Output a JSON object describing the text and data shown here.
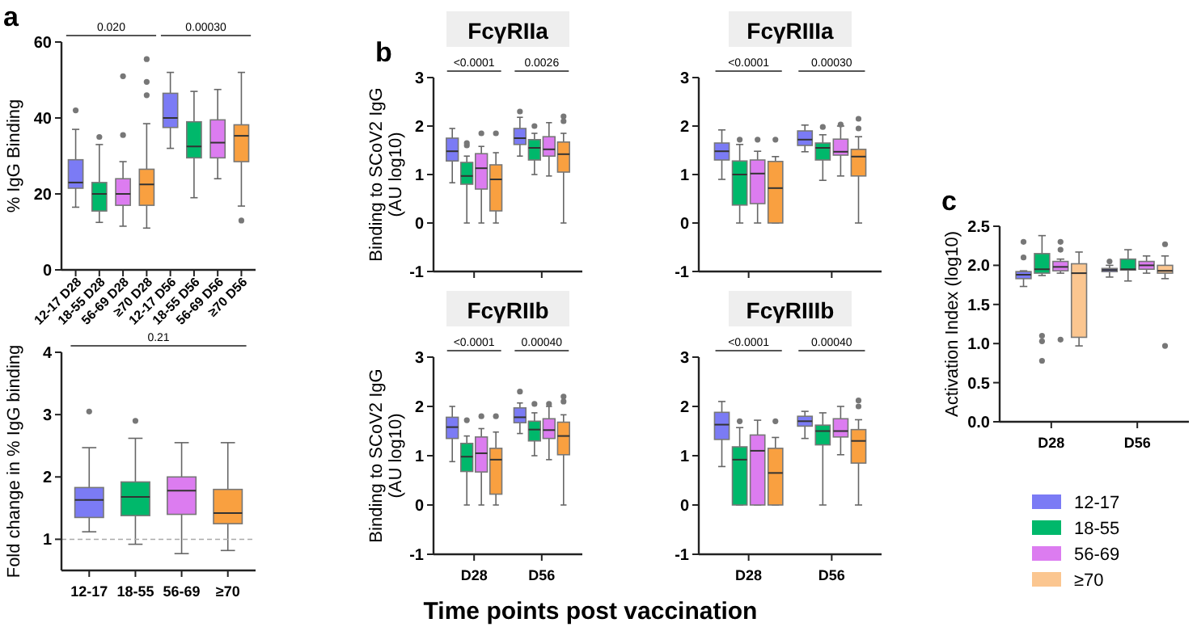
{
  "chart_data": [
    {
      "type": "box",
      "ylabel": "% IgG Binding",
      "annotations": [
        "a",
        "0.020",
        "0.00030"
      ],
      "categories": [
        "12-17 D28",
        "18-55 D28",
        "56-69 D28",
        "≥70 D28",
        "12-17 D56",
        "18-55 D56",
        "56-69 D56",
        "≥70 D56"
      ],
      "colors": [
        "#7b7bf5",
        "#00b86b",
        "#dc7cf0",
        "#f9a040",
        "#7b7bf5",
        "#00b86b",
        "#dc7cf0",
        "#f9a040"
      ],
      "ylim": [
        0,
        60
      ],
      "yticks": [
        0,
        20,
        40,
        60
      ],
      "grid": false,
      "boxes": [
        {
          "low": 16.5,
          "q1": 21.5,
          "median": 23,
          "q3": 29,
          "high": 37,
          "outliers": [
            42
          ]
        },
        {
          "low": 12.5,
          "q1": 15.5,
          "median": 20,
          "q3": 23,
          "high": 33,
          "outliers": [
            35
          ]
        },
        {
          "low": 11.5,
          "q1": 17,
          "median": 20,
          "q3": 24,
          "high": 28.5,
          "outliers": [
            35.5,
            51
          ]
        },
        {
          "low": 11,
          "q1": 17,
          "median": 22.5,
          "q3": 26.5,
          "high": 38.5,
          "outliers": [
            46,
            49.5,
            55.5
          ]
        },
        {
          "low": 32,
          "q1": 37.5,
          "median": 40,
          "q3": 46.5,
          "high": 52
        },
        {
          "low": 19,
          "q1": 29.5,
          "median": 32.5,
          "q3": 39,
          "high": 47
        },
        {
          "low": 24,
          "q1": 29.5,
          "median": 33.5,
          "q3": 39.5,
          "high": 47.5
        },
        {
          "low": 16.8,
          "q1": 28.5,
          "median": 35.3,
          "q3": 38.2,
          "high": 52,
          "outliers": [
            13
          ]
        }
      ]
    },
    {
      "type": "box",
      "ylabel": "Fold change in % IgG binding",
      "annotations": [
        "0.21"
      ],
      "categories": [
        "12-17",
        "18-55",
        "56-69",
        "≥70"
      ],
      "colors": [
        "#7b7bf5",
        "#00b86b",
        "#dc7cf0",
        "#f9a040"
      ],
      "ylim": [
        0.5,
        4
      ],
      "yticks": [
        1,
        2,
        3,
        4
      ],
      "grid": false,
      "ref_lines": [
        {
          "axis": "y",
          "value": 1,
          "color": "#aaaaaa",
          "line_style": "dashed"
        }
      ],
      "boxes": [
        {
          "low": 1.12,
          "q1": 1.35,
          "median": 1.63,
          "q3": 1.83,
          "high": 2.47,
          "outliers": [
            3.05
          ]
        },
        {
          "low": 0.92,
          "q1": 1.38,
          "median": 1.68,
          "q3": 1.92,
          "high": 2.62,
          "outliers": [
            2.9
          ]
        },
        {
          "low": 0.77,
          "q1": 1.4,
          "median": 1.78,
          "q3": 2.0,
          "high": 2.55
        },
        {
          "low": 0.82,
          "q1": 1.25,
          "median": 1.42,
          "q3": 1.8,
          "high": 2.55
        }
      ]
    },
    {
      "type": "box",
      "title": "FcγRIIa",
      "ylabel": "Binding to SCoV2 IgG\n(AU log10)",
      "annotations": [
        "b",
        "<0.0001",
        "0.0026"
      ],
      "categories": [
        null,
        null
      ],
      "ylim": [
        -1,
        3
      ],
      "yticks": [
        -1,
        0,
        1,
        2,
        3
      ],
      "tick_labels": "y",
      "grid": false,
      "series": [
        {
          "color": "#7b7bf5",
          "boxes": [
            {
              "low": 0.83,
              "q1": 1.28,
              "median": 1.48,
              "q3": 1.75,
              "high": 1.95
            },
            {
              "low": 1.38,
              "q1": 1.62,
              "median": 1.75,
              "q3": 1.95,
              "high": 2.18,
              "outliers": [
                2.3
              ]
            }
          ]
        },
        {
          "color": "#00b86b",
          "boxes": [
            {
              "low": 0,
              "q1": 0.8,
              "median": 0.97,
              "q3": 1.25,
              "high": 1.38,
              "outliers": [
                1.6,
                1.65
              ]
            },
            {
              "low": 1.0,
              "q1": 1.3,
              "median": 1.55,
              "q3": 1.72,
              "high": 1.85,
              "outliers": [
                2.0
              ]
            }
          ]
        },
        {
          "color": "#dc7cf0",
          "boxes": [
            {
              "low": 0,
              "q1": 0.7,
              "median": 1.13,
              "q3": 1.43,
              "high": 1.58,
              "outliers": [
                1.85
              ]
            },
            {
              "low": 0.97,
              "q1": 1.38,
              "median": 1.52,
              "q3": 1.78,
              "high": 2.07
            }
          ]
        },
        {
          "color": "#f9a040",
          "boxes": [
            {
              "low": 0,
              "q1": 0.25,
              "median": 0.9,
              "q3": 1.2,
              "high": 1.45,
              "outliers": [
                1.85
              ]
            },
            {
              "low": 0,
              "q1": 1.05,
              "median": 1.42,
              "q3": 1.67,
              "high": 1.85,
              "outliers": [
                2.1,
                2.2
              ]
            }
          ]
        }
      ]
    },
    {
      "type": "box",
      "title": "FcγRIIIa",
      "annotations": [
        "<0.0001",
        "0.00030"
      ],
      "categories": [
        null,
        null
      ],
      "ylim": [
        -1,
        3
      ],
      "yticks": [
        -1,
        0,
        1,
        2,
        3
      ],
      "tick_labels": "y",
      "grid": false,
      "series": [
        {
          "color": "#7b7bf5",
          "boxes": [
            {
              "low": 0.9,
              "q1": 1.3,
              "median": 1.48,
              "q3": 1.65,
              "high": 1.92
            },
            {
              "low": 1.47,
              "q1": 1.6,
              "median": 1.72,
              "q3": 1.9,
              "high": 2.02
            }
          ]
        },
        {
          "color": "#00b86b",
          "boxes": [
            {
              "low": 0,
              "q1": 0.37,
              "median": 1.0,
              "q3": 1.28,
              "high": 1.62,
              "outliers": [
                1.72
              ]
            },
            {
              "low": 0.88,
              "q1": 1.3,
              "median": 1.55,
              "q3": 1.65,
              "high": 1.82,
              "outliers": [
                1.98
              ]
            }
          ]
        },
        {
          "color": "#dc7cf0",
          "boxes": [
            {
              "low": 0,
              "q1": 0.4,
              "median": 1.02,
              "q3": 1.3,
              "high": 1.48,
              "outliers": [
                1.72
              ]
            },
            {
              "low": 0.97,
              "q1": 1.4,
              "median": 1.47,
              "q3": 1.73,
              "high": 2.0,
              "outliers": [
                2.03
              ]
            }
          ]
        },
        {
          "color": "#f9a040",
          "boxes": [
            {
              "low": 0,
              "q1": 0,
              "median": 0.72,
              "q3": 1.27,
              "high": 1.37,
              "outliers": [
                1.72
              ]
            },
            {
              "low": 0,
              "q1": 0.97,
              "median": 1.37,
              "q3": 1.52,
              "high": 1.78,
              "outliers": [
                1.95,
                2.15
              ]
            }
          ]
        }
      ]
    },
    {
      "type": "box",
      "title": "FcγRIIb",
      "ylabel": "Binding to SCoV2 IgG\n(AU log10)",
      "xlabel": "Time points post vaccination",
      "annotations": [
        "<0.0001",
        "0.00040"
      ],
      "categories": [
        "D28",
        "D56"
      ],
      "ylim": [
        -1,
        3
      ],
      "yticks": [
        -1,
        0,
        1,
        2,
        3
      ],
      "grid": false,
      "series": [
        {
          "color": "#7b7bf5",
          "boxes": [
            {
              "low": 0.88,
              "q1": 1.35,
              "median": 1.58,
              "q3": 1.78,
              "high": 2.0
            },
            {
              "low": 1.45,
              "q1": 1.67,
              "median": 1.78,
              "q3": 1.97,
              "high": 2.07,
              "outliers": [
                2.3
              ]
            }
          ]
        },
        {
          "color": "#00b86b",
          "boxes": [
            {
              "low": 0,
              "q1": 0.68,
              "median": 0.98,
              "q3": 1.25,
              "high": 1.4,
              "outliers": [
                1.72
              ]
            },
            {
              "low": 1.0,
              "q1": 1.3,
              "median": 1.53,
              "q3": 1.7,
              "high": 1.87,
              "outliers": [
                2.05
              ]
            }
          ]
        },
        {
          "color": "#dc7cf0",
          "boxes": [
            {
              "low": 0,
              "q1": 0.67,
              "median": 1.05,
              "q3": 1.38,
              "high": 1.55,
              "outliers": [
                1.8
              ]
            },
            {
              "low": 0.92,
              "q1": 1.35,
              "median": 1.52,
              "q3": 1.75,
              "high": 2.0,
              "outliers": [
                2.05
              ]
            }
          ]
        },
        {
          "color": "#f9a040",
          "boxes": [
            {
              "low": 0,
              "q1": 0.22,
              "median": 0.92,
              "q3": 1.15,
              "high": 1.48,
              "outliers": [
                1.8
              ]
            },
            {
              "low": 0,
              "q1": 1.02,
              "median": 1.4,
              "q3": 1.68,
              "high": 1.83,
              "outliers": [
                2.1,
                2.2
              ]
            }
          ]
        }
      ]
    },
    {
      "type": "box",
      "title": "FcγRIIIb",
      "annotations": [
        "<0.0001",
        "0.00040"
      ],
      "categories": [
        "D28",
        "D56"
      ],
      "ylim": [
        -1,
        3
      ],
      "yticks": [
        -1,
        0,
        1,
        2,
        3
      ],
      "grid": false,
      "series": [
        {
          "color": "#7b7bf5",
          "boxes": [
            {
              "low": 0.78,
              "q1": 1.33,
              "median": 1.63,
              "q3": 1.88,
              "high": 2.1
            },
            {
              "low": 1.35,
              "q1": 1.6,
              "median": 1.7,
              "q3": 1.8,
              "high": 1.9
            }
          ]
        },
        {
          "color": "#00b86b",
          "boxes": [
            {
              "low": 0,
              "q1": 0,
              "median": 0.92,
              "q3": 1.18,
              "high": 1.57,
              "outliers": [
                1.7
              ]
            },
            {
              "low": 0,
              "q1": 1.22,
              "median": 1.5,
              "q3": 1.62,
              "high": 1.87
            }
          ]
        },
        {
          "color": "#dc7cf0",
          "boxes": [
            {
              "low": 0,
              "q1": 0,
              "median": 1.1,
              "q3": 1.42,
              "high": 1.72
            },
            {
              "low": 1.02,
              "q1": 1.38,
              "median": 1.5,
              "q3": 1.75,
              "high": 2.0
            }
          ]
        },
        {
          "color": "#f9a040",
          "boxes": [
            {
              "low": 0,
              "q1": 0,
              "median": 0.65,
              "q3": 1.15,
              "high": 1.37,
              "outliers": [
                1.7
              ]
            },
            {
              "low": 0,
              "q1": 0.85,
              "median": 1.3,
              "q3": 1.53,
              "high": 1.73,
              "outliers": [
                2.0,
                2.12
              ]
            }
          ]
        }
      ]
    },
    {
      "type": "box",
      "ylabel": "Activation Index (log10)",
      "annotations": [
        "c"
      ],
      "categories": [
        "D28",
        "D56"
      ],
      "ylim": [
        0,
        2.5
      ],
      "yticks": [
        {
          "value": 0,
          "label": "0.0"
        },
        {
          "value": 0.5,
          "label": "0.5"
        },
        {
          "value": 1,
          "label": "1.0"
        },
        {
          "value": 1.5,
          "label": "1.5"
        },
        {
          "value": 2,
          "label": "2.0"
        },
        {
          "value": 2.5,
          "label": "2.5"
        }
      ],
      "grid": false,
      "legend": "bottom",
      "series": [
        {
          "name": "12-17",
          "color": "#7b7bf5",
          "boxes": [
            {
              "low": 1.73,
              "q1": 1.83,
              "median": 1.88,
              "q3": 1.92,
              "high": 1.93,
              "outliers": [
                2.1,
                2.3
              ]
            },
            {
              "low": 1.85,
              "q1": 1.92,
              "median": 1.94,
              "q3": 1.96,
              "high": 2.0,
              "outliers": [
                2.05
              ]
            }
          ]
        },
        {
          "name": "18-55",
          "color": "#00b86b",
          "boxes": [
            {
              "low": 1.87,
              "q1": 1.9,
              "median": 1.95,
              "q3": 2.15,
              "high": 2.38,
              "outliers": [
                1.1,
                1.03,
                0.78
              ]
            },
            {
              "low": 1.8,
              "q1": 1.94,
              "median": 1.95,
              "q3": 2.08,
              "high": 2.2
            }
          ]
        },
        {
          "name": "56-69",
          "color": "#dc7cf0",
          "boxes": [
            {
              "low": 1.9,
              "q1": 1.93,
              "median": 1.98,
              "q3": 2.05,
              "high": 2.08,
              "outliers": [
                2.3,
                2.2,
                1.05
              ]
            },
            {
              "low": 1.9,
              "q1": 1.95,
              "median": 2.0,
              "q3": 2.05,
              "high": 2.12
            }
          ]
        },
        {
          "name": "≥70",
          "color": "#fbc690",
          "boxes": [
            {
              "low": 0.97,
              "q1": 1.08,
              "median": 1.9,
              "q3": 2.02,
              "high": 2.17
            },
            {
              "low": 1.83,
              "q1": 1.9,
              "median": 1.93,
              "q3": 2.0,
              "high": 2.12,
              "outliers": [
                2.27,
                0.97
              ]
            }
          ]
        }
      ]
    }
  ]
}
